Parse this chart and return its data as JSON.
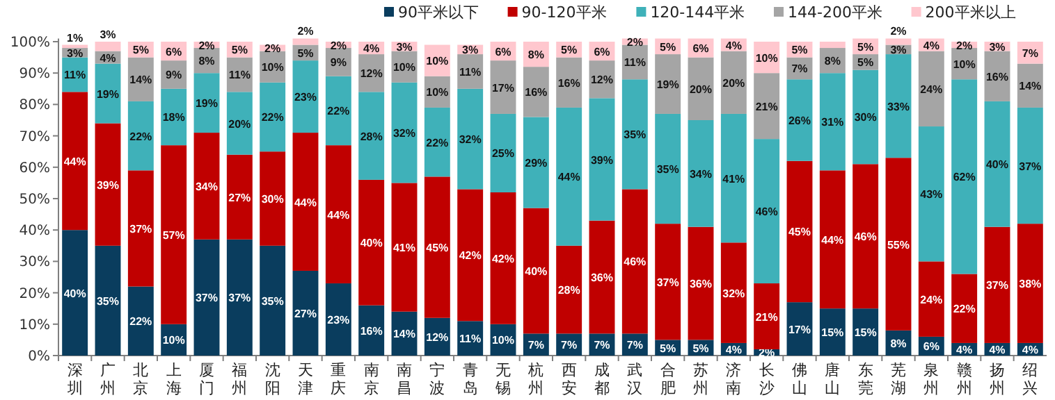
{
  "chart_data": {
    "type": "bar",
    "stacked": true,
    "legend": "top right",
    "categories": [
      "深圳",
      "广州",
      "北京",
      "上海",
      "厦门",
      "福州",
      "沈阳",
      "天津",
      "重庆",
      "南京",
      "南昌",
      "宁波",
      "青岛",
      "无锡",
      "杭州",
      "西安",
      "成都",
      "武汉",
      "合肥",
      "苏州",
      "济南",
      "长沙",
      "佛山",
      "唐山",
      "东莞",
      "芜湖",
      "泉州",
      "赣州",
      "扬州",
      "绍兴"
    ],
    "ylim": [
      0,
      101
    ],
    "yticks": [
      {
        "value": 0,
        "label": "0%"
      },
      {
        "value": 10,
        "label": "10%"
      },
      {
        "value": 20,
        "label": "20%"
      },
      {
        "value": 30,
        "label": "30%"
      },
      {
        "value": 40,
        "label": "40%"
      },
      {
        "value": 50,
        "label": "50%"
      },
      {
        "value": 60,
        "label": "60%"
      },
      {
        "value": 70,
        "label": "70%"
      },
      {
        "value": 80,
        "label": "80%"
      },
      {
        "value": 90,
        "label": "90%"
      },
      {
        "value": 100,
        "label": "100%"
      }
    ],
    "series": [
      {
        "name": "90平米以下",
        "color": "#0a3d5e",
        "values": [
          40,
          35,
          22,
          10,
          37,
          37,
          35,
          27,
          23,
          16,
          14,
          12,
          11,
          10,
          7,
          7,
          7,
          7,
          5,
          5,
          4,
          2,
          17,
          15,
          15,
          8,
          6,
          4,
          4,
          4
        ],
        "value_labels": [
          "40%",
          "35%",
          "22%",
          "10%",
          "37%",
          "37%",
          "35%",
          "27%",
          "23%",
          "16%",
          "14%",
          "12%",
          "11%",
          "10%",
          "7%",
          "7%",
          "7%",
          "7%",
          "5%",
          "5%",
          "4%",
          "2%",
          "17%",
          "15%",
          "15%",
          "8%",
          "6%",
          "4%",
          "4%",
          "4%"
        ]
      },
      {
        "name": "90-120平米",
        "color": "#c00000",
        "values": [
          44,
          39,
          37,
          57,
          34,
          27,
          30,
          44,
          44,
          40,
          41,
          45,
          42,
          42,
          40,
          28,
          36,
          46,
          37,
          36,
          32,
          21,
          45,
          44,
          46,
          55,
          24,
          22,
          37,
          38
        ],
        "value_labels": [
          "44%",
          "39%",
          "37%",
          "57%",
          "34%",
          "27%",
          "30%",
          "44%",
          "44%",
          "40%",
          "41%",
          "45%",
          "42%",
          "42%",
          "40%",
          "28%",
          "36%",
          "46%",
          "37%",
          "36%",
          "32%",
          "21%",
          "45%",
          "44%",
          "46%",
          "55%",
          "24%",
          "22%",
          "37%",
          "38%"
        ]
      },
      {
        "name": "120-144平米",
        "color": "#3fb1b9",
        "values": [
          11,
          19,
          22,
          18,
          19,
          20,
          22,
          23,
          22,
          28,
          32,
          22,
          32,
          25,
          29,
          44,
          39,
          35,
          35,
          34,
          41,
          46,
          26,
          31,
          30,
          33,
          43,
          62,
          40,
          37
        ],
        "value_labels": [
          "11%",
          "19%",
          "22%",
          "18%",
          "19%",
          "20%",
          "22%",
          "23%",
          "22%",
          "28%",
          "32%",
          "22%",
          "32%",
          "25%",
          "29%",
          "44%",
          "39%",
          "35%",
          "35%",
          "34%",
          "41%",
          "46%",
          "26%",
          "31%",
          "30%",
          "33%",
          "43%",
          "62%",
          "40%",
          "37%"
        ]
      },
      {
        "name": "144-200平米",
        "color": "#a5a5a5",
        "values": [
          3,
          4,
          14,
          9,
          8,
          11,
          10,
          5,
          9,
          12,
          10,
          10,
          11,
          17,
          16,
          16,
          12,
          11,
          19,
          20,
          20,
          21,
          7,
          8,
          5,
          3,
          24,
          10,
          16,
          14
        ],
        "value_labels": [
          "3%",
          "4%",
          "14%",
          "9%",
          "8%",
          "11%",
          "10%",
          "5%",
          "9%",
          "12%",
          "10%",
          "10%",
          "11%",
          "17%",
          "16%",
          "16%",
          "12%",
          "11%",
          "19%",
          "20%",
          "20%",
          "21%",
          "7%",
          "8%",
          "5%",
          "3%",
          "24%",
          "10%",
          "16%",
          "14%"
        ]
      },
      {
        "name": "200平米以上",
        "color": "#ffc7ce",
        "values": [
          1,
          3,
          5,
          6,
          2,
          5,
          2,
          2,
          2,
          4,
          3,
          10,
          3,
          6,
          8,
          5,
          6,
          2,
          5,
          6,
          4,
          10,
          5,
          2,
          5,
          2,
          4,
          2,
          3,
          7
        ],
        "value_labels": [
          "1%",
          "3%",
          "5%",
          "6%",
          "2%",
          "5%",
          "2%",
          "2%",
          "2%",
          "4%",
          "3%",
          "10%",
          "3%",
          "6%",
          "8%",
          "5%",
          "6%",
          "2%",
          "5%",
          "6%",
          "4%",
          "10%",
          "5%",
          null,
          "5%",
          "2%",
          "4%",
          "2%",
          "3%",
          "7%"
        ]
      }
    ]
  }
}
